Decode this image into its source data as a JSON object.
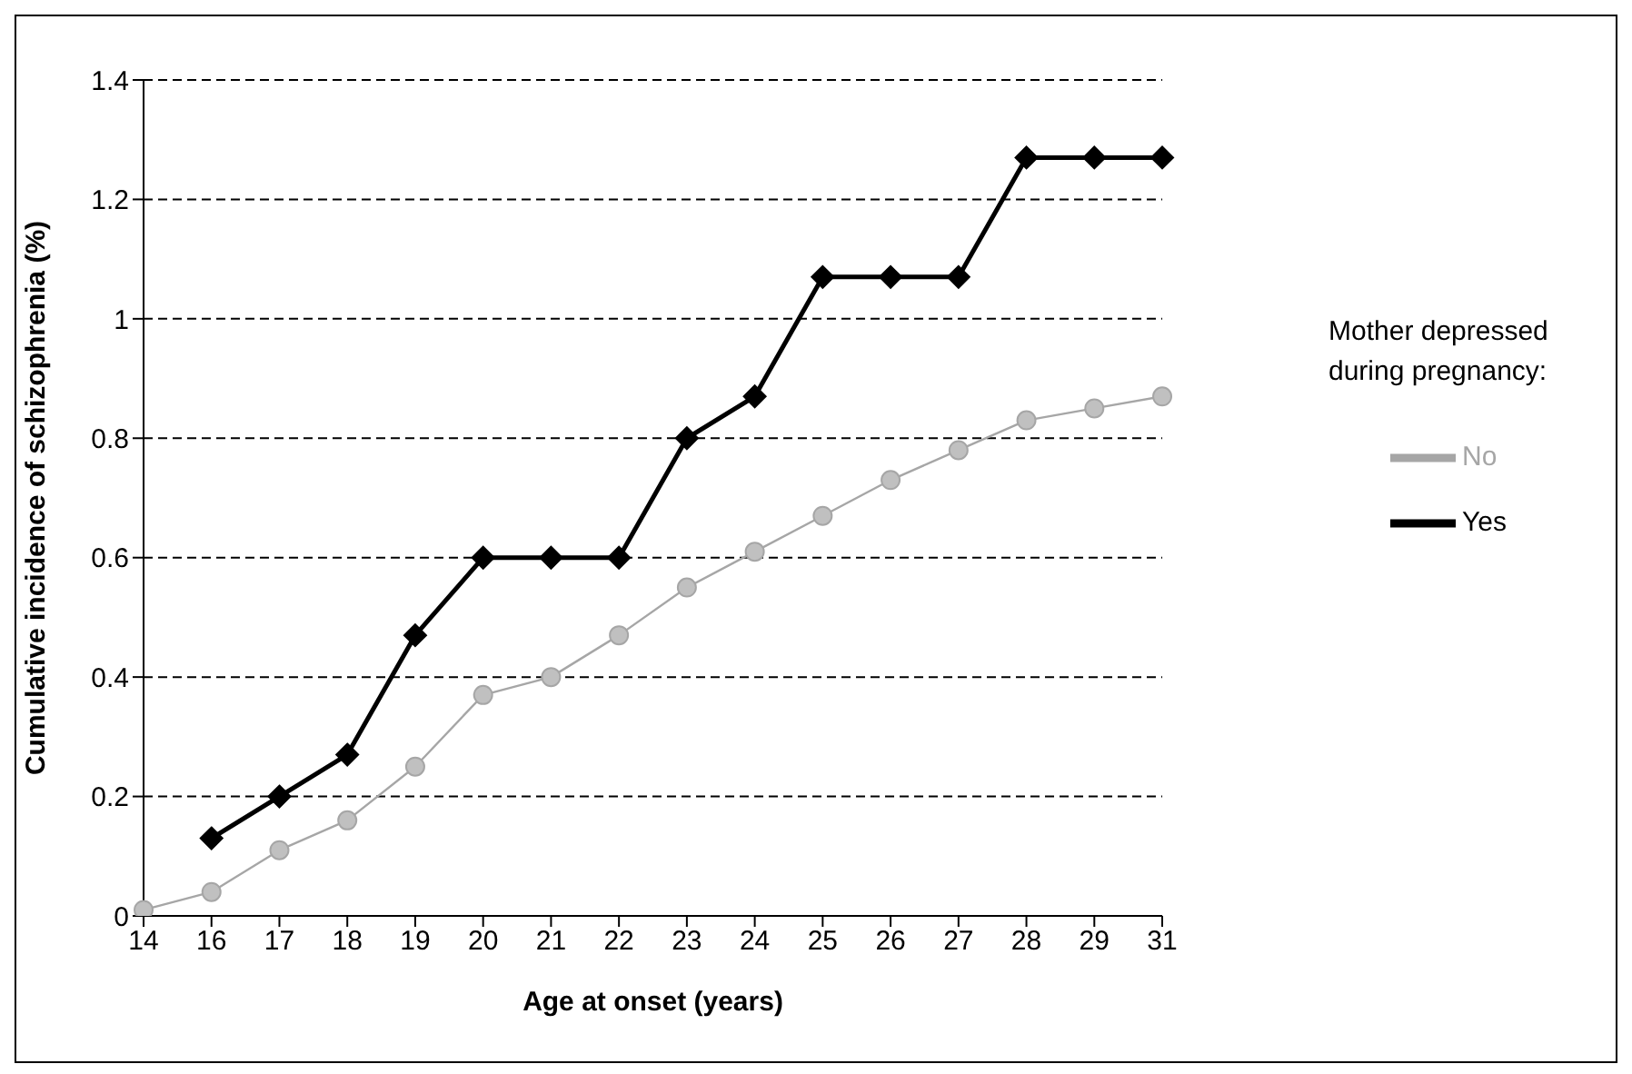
{
  "chart_data": {
    "type": "line",
    "xlabel": "Age at onset (years)",
    "ylabel": "Cumulative incidence of schizophrenia (%)",
    "legend_title": "Mother depressed during pregnancy:",
    "categories": [
      "14",
      "16",
      "17",
      "18",
      "19",
      "20",
      "21",
      "22",
      "23",
      "24",
      "25",
      "26",
      "27",
      "28",
      "29",
      "31"
    ],
    "series": [
      {
        "name": "Yes",
        "color": "#000000",
        "marker": "diamond",
        "values": [
          null,
          0.13,
          0.2,
          0.27,
          0.47,
          0.6,
          0.6,
          0.6,
          0.8,
          0.87,
          1.07,
          1.07,
          1.07,
          1.27,
          1.27,
          1.27
        ]
      },
      {
        "name": "No",
        "color": "#a6a6a6",
        "marker": "circle",
        "values": [
          0.01,
          0.04,
          0.11,
          0.16,
          0.25,
          0.37,
          0.4,
          0.47,
          0.55,
          0.61,
          0.67,
          0.73,
          0.78,
          0.83,
          0.85,
          0.87
        ]
      }
    ],
    "ylim": [
      0,
      1.4
    ],
    "yticks": [
      0,
      0.2,
      0.4,
      0.6,
      0.8,
      1,
      1.2,
      1.4
    ],
    "grid": "y",
    "legend": "right"
  }
}
